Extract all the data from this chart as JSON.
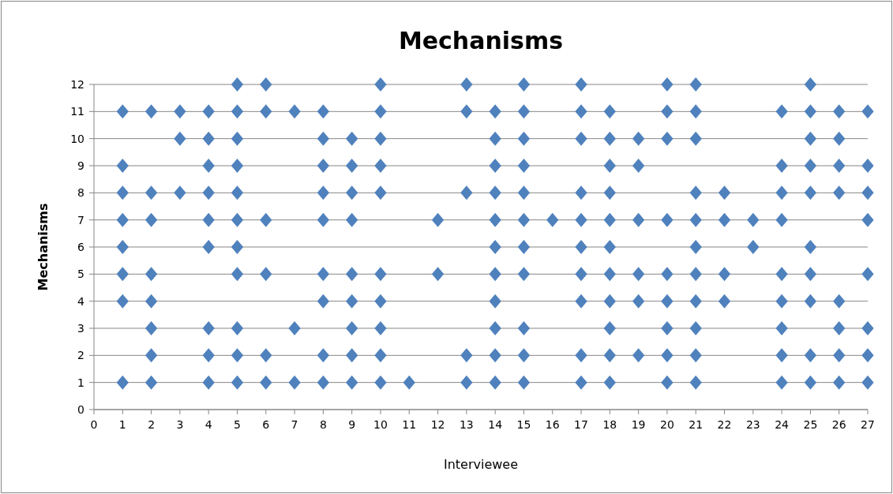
{
  "chart_data": {
    "type": "scatter",
    "title": "Mechanisms",
    "xlabel": "Interviewee",
    "ylabel": "Mechanisms",
    "xlim": [
      0,
      27
    ],
    "xticks": [
      0,
      1,
      2,
      3,
      4,
      5,
      6,
      7,
      8,
      9,
      10,
      11,
      12,
      13,
      14,
      15,
      16,
      17,
      18,
      19,
      20,
      21,
      22,
      23,
      24,
      25,
      26,
      27
    ],
    "ylim": [
      0,
      12
    ],
    "yticks": [
      0,
      1,
      2,
      3,
      4,
      5,
      6,
      7,
      8,
      9,
      10,
      11,
      12
    ],
    "grid": "y",
    "marker": "diamond",
    "series": [
      {
        "color": "#4f81bd",
        "x": [
          5,
          6,
          10,
          13,
          15,
          17,
          20,
          21,
          25,
          1,
          2,
          3,
          4,
          5,
          6,
          7,
          8,
          10,
          13,
          14,
          15,
          17,
          18,
          20,
          21,
          24,
          25,
          26,
          27,
          3,
          4,
          5,
          8,
          9,
          10,
          14,
          15,
          17,
          18,
          19,
          20,
          21,
          25,
          26,
          1,
          4,
          5,
          8,
          9,
          10,
          14,
          15,
          18,
          19,
          24,
          25,
          26,
          27,
          1,
          2,
          3,
          4,
          5,
          8,
          9,
          10,
          13,
          14,
          15,
          17,
          18,
          21,
          22,
          24,
          25,
          26,
          27,
          1,
          2,
          4,
          5,
          6,
          8,
          9,
          12,
          14,
          15,
          16,
          17,
          18,
          19,
          20,
          21,
          22,
          23,
          24,
          27,
          1,
          4,
          5,
          14,
          15,
          17,
          18,
          21,
          23,
          25,
          1,
          2,
          5,
          6,
          8,
          9,
          10,
          12,
          14,
          15,
          17,
          18,
          19,
          20,
          21,
          22,
          24,
          25,
          27,
          1,
          2,
          8,
          9,
          10,
          14,
          17,
          18,
          19,
          20,
          21,
          22,
          24,
          25,
          26,
          2,
          4,
          5,
          7,
          9,
          10,
          14,
          15,
          18,
          20,
          21,
          24,
          26,
          27,
          2,
          4,
          5,
          6,
          8,
          9,
          10,
          13,
          14,
          15,
          17,
          18,
          19,
          20,
          21,
          24,
          25,
          26,
          27,
          1,
          2,
          4,
          5,
          6,
          7,
          8,
          9,
          10,
          11,
          13,
          14,
          15,
          17,
          18,
          20,
          21,
          24,
          25,
          26,
          27
        ],
        "values": [
          12,
          12,
          12,
          12,
          12,
          12,
          12,
          12,
          12,
          11,
          11,
          11,
          11,
          11,
          11,
          11,
          11,
          11,
          11,
          11,
          11,
          11,
          11,
          11,
          11,
          11,
          11,
          11,
          11,
          10,
          10,
          10,
          10,
          10,
          10,
          10,
          10,
          10,
          10,
          10,
          10,
          10,
          10,
          10,
          9,
          9,
          9,
          9,
          9,
          9,
          9,
          9,
          9,
          9,
          9,
          9,
          9,
          9,
          8,
          8,
          8,
          8,
          8,
          8,
          8,
          8,
          8,
          8,
          8,
          8,
          8,
          8,
          8,
          8,
          8,
          8,
          8,
          7,
          7,
          7,
          7,
          7,
          7,
          7,
          7,
          7,
          7,
          7,
          7,
          7,
          7,
          7,
          7,
          7,
          7,
          7,
          7,
          6,
          6,
          6,
          6,
          6,
          6,
          6,
          6,
          6,
          6,
          5,
          5,
          5,
          5,
          5,
          5,
          5,
          5,
          5,
          5,
          5,
          5,
          5,
          5,
          5,
          5,
          5,
          5,
          5,
          4,
          4,
          4,
          4,
          4,
          4,
          4,
          4,
          4,
          4,
          4,
          4,
          4,
          4,
          4,
          3,
          3,
          3,
          3,
          3,
          3,
          3,
          3,
          3,
          3,
          3,
          3,
          3,
          3,
          2,
          2,
          2,
          2,
          2,
          2,
          2,
          2,
          2,
          2,
          2,
          2,
          2,
          2,
          2,
          2,
          2,
          2,
          2,
          1,
          1,
          1,
          1,
          1,
          1,
          1,
          1,
          1,
          1,
          1,
          1,
          1,
          1,
          1,
          1,
          1,
          1,
          1,
          1,
          1
        ]
      }
    ]
  }
}
